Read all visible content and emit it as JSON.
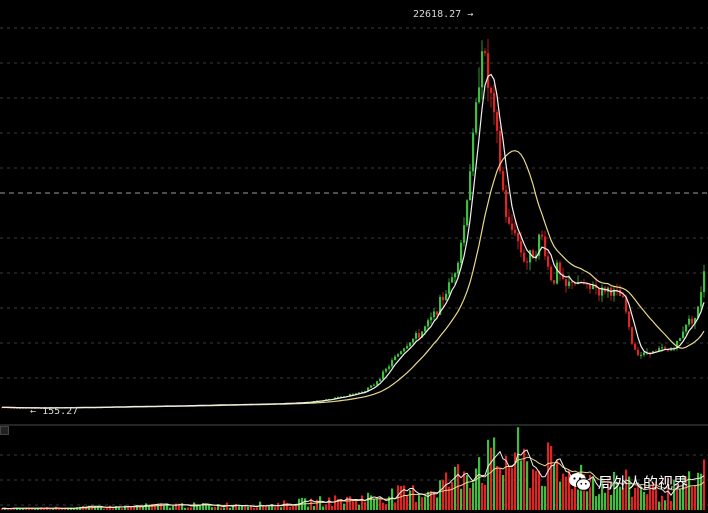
{
  "chart_data": {
    "type": "candlestick",
    "title": "",
    "max_label": "22618.27",
    "min_label": "155.27",
    "max_arrow": "→",
    "min_arrow": "←",
    "ylim": [
      0,
      24000
    ],
    "volume_ylim": [
      0,
      100
    ],
    "colors": {
      "background": "#000000",
      "up": "#3fbf3f",
      "down": "#e02424",
      "ma_short": "#f0f0f0",
      "ma_long": "#e8d98a",
      "grid": "#3a3a3a",
      "crosshair": "#9a9a9a"
    },
    "trend": [
      [
        0,
        200
      ],
      [
        15,
        170
      ],
      [
        30,
        160
      ],
      [
        45,
        155
      ],
      [
        60,
        175
      ],
      [
        80,
        190
      ],
      [
        100,
        210
      ],
      [
        130,
        240
      ],
      [
        160,
        270
      ],
      [
        190,
        300
      ],
      [
        220,
        340
      ],
      [
        250,
        380
      ],
      [
        280,
        420
      ],
      [
        300,
        480
      ],
      [
        315,
        560
      ],
      [
        330,
        700
      ],
      [
        345,
        900
      ],
      [
        360,
        1100
      ],
      [
        372,
        1500
      ],
      [
        382,
        2200
      ],
      [
        392,
        3000
      ],
      [
        400,
        3600
      ],
      [
        410,
        4200
      ],
      [
        418,
        4500
      ],
      [
        425,
        5000
      ],
      [
        432,
        5600
      ],
      [
        440,
        6500
      ],
      [
        447,
        7300
      ],
      [
        453,
        8200
      ],
      [
        458,
        9500
      ],
      [
        463,
        11000
      ],
      [
        467,
        13500
      ],
      [
        471,
        15500
      ],
      [
        474,
        17000
      ],
      [
        477,
        19000
      ],
      [
        480,
        22618
      ],
      [
        483,
        21000
      ],
      [
        486,
        19500
      ],
      [
        489,
        19000
      ],
      [
        492,
        17500
      ],
      [
        495,
        16500
      ],
      [
        498,
        14800
      ],
      [
        501,
        13500
      ],
      [
        504,
        12000
      ],
      [
        507,
        11000
      ],
      [
        510,
        10500
      ],
      [
        513,
        11200
      ],
      [
        516,
        10200
      ],
      [
        520,
        9500
      ],
      [
        525,
        8800
      ],
      [
        530,
        9200
      ],
      [
        536,
        9800
      ],
      [
        540,
        10500
      ],
      [
        544,
        9500
      ],
      [
        548,
        8200
      ],
      [
        552,
        7600
      ],
      [
        556,
        8500
      ],
      [
        560,
        7800
      ],
      [
        564,
        7200
      ],
      [
        568,
        7500
      ],
      [
        572,
        7900
      ],
      [
        576,
        7300
      ],
      [
        580,
        7600
      ],
      [
        584,
        7400
      ],
      [
        588,
        7000
      ],
      [
        592,
        7600
      ],
      [
        596,
        7200
      ],
      [
        600,
        7000
      ],
      [
        605,
        7300
      ],
      [
        610,
        7100
      ],
      [
        615,
        6900
      ],
      [
        620,
        6800
      ],
      [
        624,
        6200
      ],
      [
        628,
        4800
      ],
      [
        632,
        3800
      ],
      [
        636,
        3500
      ],
      [
        642,
        3300
      ],
      [
        648,
        3600
      ],
      [
        654,
        3400
      ],
      [
        660,
        3700
      ],
      [
        666,
        3500
      ],
      [
        672,
        3800
      ],
      [
        678,
        4100
      ],
      [
        684,
        5200
      ],
      [
        690,
        5400
      ],
      [
        696,
        5600
      ],
      [
        700,
        7200
      ],
      [
        703,
        8500
      ]
    ],
    "volume_trend": [
      [
        0,
        2
      ],
      [
        40,
        3
      ],
      [
        80,
        4
      ],
      [
        120,
        5
      ],
      [
        150,
        7
      ],
      [
        180,
        8
      ],
      [
        210,
        7
      ],
      [
        240,
        9
      ],
      [
        270,
        8
      ],
      [
        300,
        12
      ],
      [
        330,
        15
      ],
      [
        360,
        18
      ],
      [
        380,
        22
      ],
      [
        400,
        25
      ],
      [
        420,
        28
      ],
      [
        440,
        40
      ],
      [
        455,
        50
      ],
      [
        465,
        65
      ],
      [
        475,
        80
      ],
      [
        485,
        75
      ],
      [
        495,
        72
      ],
      [
        505,
        78
      ],
      [
        515,
        85
      ],
      [
        525,
        70
      ],
      [
        535,
        60
      ],
      [
        545,
        72
      ],
      [
        555,
        55
      ],
      [
        565,
        50
      ],
      [
        575,
        62
      ],
      [
        585,
        52
      ],
      [
        595,
        48
      ],
      [
        605,
        45
      ],
      [
        615,
        42
      ],
      [
        625,
        40
      ],
      [
        635,
        35
      ],
      [
        645,
        38
      ],
      [
        655,
        30
      ],
      [
        665,
        34
      ],
      [
        675,
        30
      ],
      [
        685,
        38
      ],
      [
        695,
        45
      ],
      [
        703,
        55
      ]
    ]
  },
  "watermark": {
    "icon": "wechat-icon",
    "text": "局外人的视界"
  }
}
